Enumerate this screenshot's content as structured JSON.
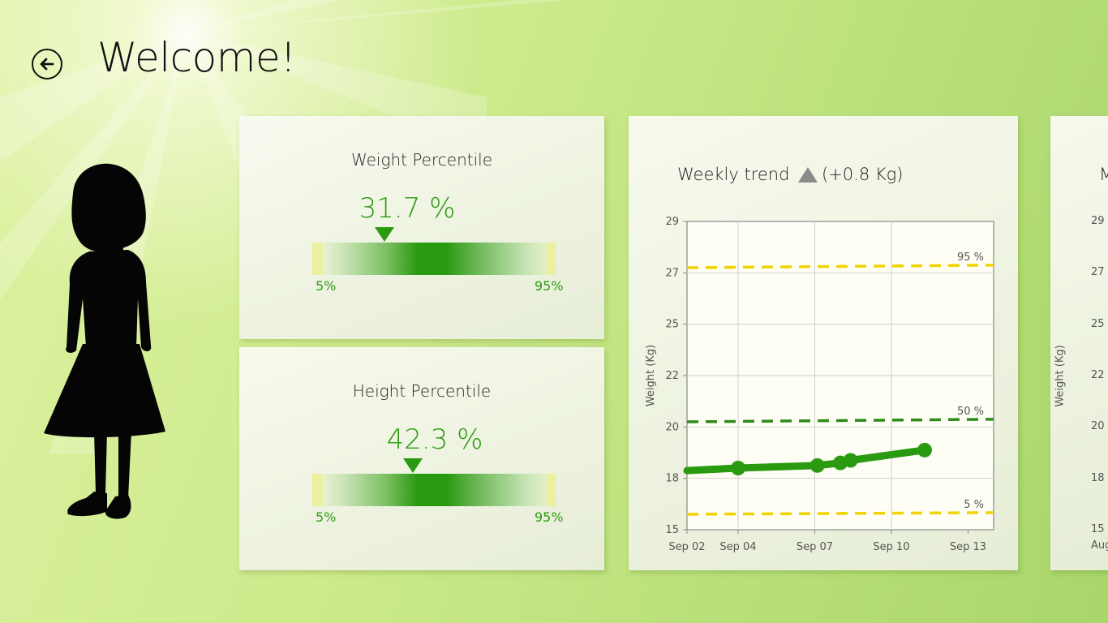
{
  "header": {
    "title": "Welcome!",
    "back_icon": "back-arrow-icon"
  },
  "weight_card": {
    "title": "Weight Percentile",
    "value_text": "31.7 %",
    "value": 31.7,
    "min_label": "5%",
    "max_label": "95%"
  },
  "height_card": {
    "title": "Height Percentile",
    "value_text": "42.3 %",
    "value": 42.3,
    "min_label": "5%",
    "max_label": "95%"
  },
  "trend_card": {
    "title": "Weekly trend",
    "delta_icon": "up-triangle-icon",
    "delta": "(+0.8 Kg)"
  },
  "partial_card": {
    "title_fragment": "M",
    "ylabel": "Weight (Kg)",
    "y_ticks": [
      "29",
      "27",
      "25",
      "22",
      "20",
      "18",
      "15"
    ],
    "x_tick": "Aug"
  },
  "colors": {
    "accent_green": "#2a9a10",
    "percentile_yellow": "#f0d400",
    "percentile_green": "#2e8b1a",
    "trend_icon": "#8a8a8a"
  },
  "chart_data": {
    "type": "line",
    "title": "Weekly trend",
    "xlabel": "",
    "ylabel": "Weight (Kg)",
    "x_tick_labels": [
      "Sep 02",
      "Sep 04",
      "Sep 07",
      "Sep 10",
      "Sep 13"
    ],
    "x_tick_positions": [
      0,
      2,
      5,
      8,
      11
    ],
    "y_tick_labels": [
      "29",
      "27",
      "25",
      "22",
      "20",
      "18",
      "15"
    ],
    "ylim": [
      15,
      29
    ],
    "xlim": [
      0,
      12
    ],
    "grid": true,
    "series": [
      {
        "x": [
          0,
          2,
          5.1,
          6,
          6.4,
          9.3
        ],
        "y": [
          18.3,
          18.4,
          18.5,
          18.6,
          18.7,
          19.1
        ]
      }
    ],
    "reference_lines": [
      {
        "label": "95 %",
        "y_start": 27.2,
        "y_end": 27.3,
        "color": "#f0d400"
      },
      {
        "label": "50 %",
        "y_start": 20.2,
        "y_end": 20.3,
        "color": "#2e8b1a"
      },
      {
        "label": "5 %",
        "y_start": 15.9,
        "y_end": 16.0,
        "color": "#f0d400"
      }
    ]
  }
}
